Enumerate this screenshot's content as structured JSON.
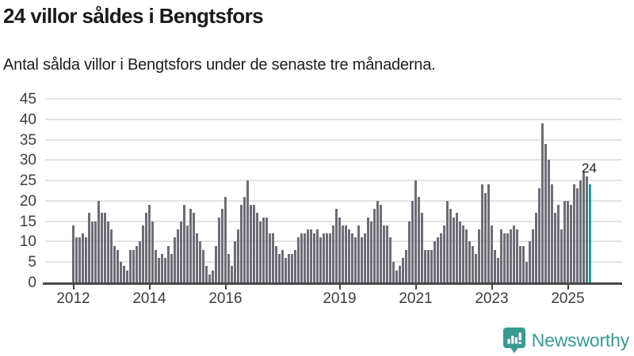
{
  "title": "24 villor såldes i Bengtsfors",
  "subtitle": "Antal sålda villor i Bengtsfors under de senaste tre månaderna.",
  "annotation": {
    "label": "24"
  },
  "branding": {
    "name": "Newsworthy",
    "color": "#389b90"
  },
  "colors": {
    "bar": "#6d6d76",
    "highlight": "#13a29c",
    "grid": "#e3e3e3",
    "axis": "#474747",
    "tick_label": "#3d3d3d",
    "text": "#1a1a1a"
  },
  "chart_data": {
    "type": "bar",
    "title": "24 villor såldes i Bengtsfors",
    "subtitle": "Antal sålda villor i Bengtsfors under de senaste tre månaderna.",
    "xlabel": "",
    "ylabel": "",
    "ylim": [
      0,
      45
    ],
    "yticks": [
      0,
      5,
      10,
      15,
      20,
      25,
      30,
      35,
      40,
      45
    ],
    "grid": "horizontal",
    "legend": "none",
    "x_start_month": "2012-01",
    "x_end_month": "2025-08",
    "x_tick_labels": [
      "2012",
      "2014",
      "2016",
      "2019",
      "2021",
      "2023",
      "2025"
    ],
    "x_tick_month_offsets": [
      0,
      24,
      48,
      84,
      108,
      132,
      156
    ],
    "highlight_last": true,
    "last_value_label": "24",
    "values": [
      14,
      11,
      11,
      12,
      11,
      17,
      15,
      15,
      20,
      17,
      17,
      15,
      13,
      9,
      8,
      5,
      4,
      3,
      8,
      8,
      9,
      10,
      14,
      17,
      19,
      15,
      8,
      6,
      7,
      6,
      9,
      7,
      11,
      13,
      15,
      19,
      14,
      18,
      17,
      12,
      10,
      8,
      4,
      2,
      3,
      9,
      16,
      18,
      21,
      7,
      4,
      10,
      13,
      19,
      21,
      25,
      19,
      19,
      17,
      15,
      16,
      16,
      12,
      12,
      9,
      7,
      8,
      6,
      7,
      7,
      8,
      11,
      12,
      12,
      13,
      13,
      12,
      13,
      11,
      12,
      12,
      12,
      14,
      18,
      16,
      14,
      14,
      13,
      12,
      11,
      14,
      11,
      12,
      16,
      15,
      18,
      20,
      19,
      14,
      14,
      11,
      5,
      3,
      4,
      6,
      8,
      15,
      20,
      25,
      21,
      17,
      8,
      8,
      8,
      10,
      11,
      12,
      14,
      20,
      18,
      16,
      17,
      15,
      14,
      13,
      10,
      9,
      7,
      13,
      24,
      22,
      24,
      14,
      8,
      6,
      13,
      12,
      12,
      13,
      14,
      13,
      9,
      9,
      5,
      10,
      13,
      17,
      23,
      39,
      34,
      30,
      24,
      17,
      19,
      13,
      20,
      20,
      19,
      24,
      23,
      25,
      27,
      26,
      24
    ]
  }
}
